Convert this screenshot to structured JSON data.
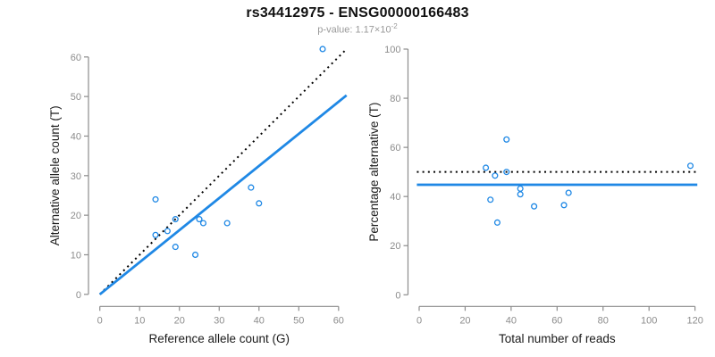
{
  "header": {
    "title": "rs34412975 - ENSG00000166483",
    "subtitle_prefix": "p-value: 1.17×10",
    "subtitle_exponent": "-2"
  },
  "colors": {
    "point": "#1f88e5",
    "fit_line": "#1f88e5",
    "expected_line": "#000000",
    "axis": "#8c8c8c",
    "tick_label": "#8c8c8c",
    "axis_title": "#1a1a1a",
    "title": "#111111",
    "subtitle": "#999999"
  },
  "chart_data": [
    {
      "type": "scatter",
      "name": "allele-counts",
      "xlabel": "Reference allele count (G)",
      "ylabel": "Alternative allele count (T)",
      "xlim": [
        0,
        60
      ],
      "ylim": [
        0,
        62
      ],
      "xticks": [
        0,
        10,
        20,
        30,
        40,
        50,
        60
      ],
      "yticks": [
        0,
        10,
        20,
        30,
        40,
        50,
        60
      ],
      "grid": false,
      "legend": "none",
      "points": [
        [
          14,
          24
        ],
        [
          19,
          19
        ],
        [
          25,
          19
        ],
        [
          26,
          18
        ],
        [
          32,
          18
        ],
        [
          14,
          15
        ],
        [
          17,
          16
        ],
        [
          19,
          12
        ],
        [
          24,
          10
        ],
        [
          38,
          27
        ],
        [
          40,
          23
        ],
        [
          56,
          62
        ]
      ],
      "lines": [
        {
          "name": "expected-ratio",
          "style": "dotted",
          "from": [
            0,
            0
          ],
          "to": [
            62,
            62
          ]
        },
        {
          "name": "fitted-ratio",
          "style": "solid",
          "from": [
            0,
            0
          ],
          "to": [
            62,
            50.3
          ]
        }
      ]
    },
    {
      "type": "scatter",
      "name": "percentage-vs-coverage",
      "xlabel": "Total number of reads",
      "ylabel": "Percentage alternative (T)",
      "xlim": [
        0,
        120
      ],
      "ylim": [
        0,
        100
      ],
      "xticks": [
        0,
        20,
        40,
        60,
        80,
        100,
        120
      ],
      "yticks": [
        0,
        20,
        40,
        60,
        80,
        100
      ],
      "grid": false,
      "legend": "none",
      "points": [
        [
          38,
          63.2
        ],
        [
          38,
          50
        ],
        [
          44,
          43.2
        ],
        [
          44,
          40.9
        ],
        [
          50,
          36
        ],
        [
          29,
          51.7
        ],
        [
          33,
          48.5
        ],
        [
          31,
          38.7
        ],
        [
          34,
          29.4
        ],
        [
          65,
          41.5
        ],
        [
          63,
          36.5
        ],
        [
          118,
          52.5
        ]
      ],
      "lines": [
        {
          "name": "expected-percentage",
          "style": "dotted",
          "hline": 50
        },
        {
          "name": "fitted-percentage",
          "style": "solid",
          "hline": 44.8
        }
      ]
    }
  ]
}
